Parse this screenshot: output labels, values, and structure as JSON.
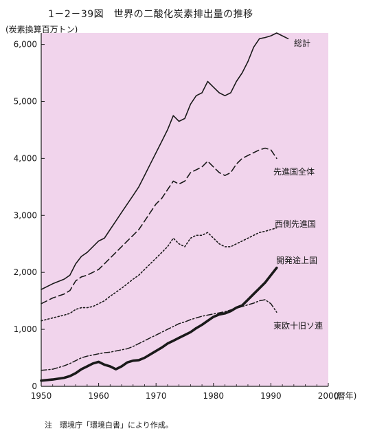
{
  "title": "1－2－39図　世界の二酸化炭素排出量の推移",
  "unit_label": "(炭素換算百万トン)",
  "note": "注　環境庁「環境白書」により作成。",
  "colors": {
    "plot_background": "#f1d4ec",
    "axis": "#1a1a1a",
    "line": "#1a1a1a"
  },
  "chart_data": {
    "type": "line",
    "xlabel": "(暦年)",
    "ylabel": "(炭素換算百万トン)",
    "xlim": [
      1950,
      2000
    ],
    "ylim": [
      0,
      6200
    ],
    "x_ticks": [
      1950,
      1960,
      1970,
      1980,
      1990,
      2000
    ],
    "x_tick_labels": [
      "1950",
      "1960",
      "1970",
      "1980",
      "1990",
      "2000"
    ],
    "y_ticks": [
      0,
      1000,
      2000,
      3000,
      4000,
      5000,
      6000
    ],
    "y_tick_labels": [
      "0",
      "1,000",
      "2,000",
      "3,000",
      "4,000",
      "5,000",
      "6,000"
    ],
    "grid": false,
    "series": [
      {
        "name": "総計",
        "style": "solid",
        "x": [
          1950,
          1952,
          1954,
          1955,
          1956,
          1957,
          1958,
          1959,
          1960,
          1961,
          1962,
          1963,
          1964,
          1965,
          1966,
          1967,
          1968,
          1969,
          1970,
          1971,
          1972,
          1973,
          1974,
          1975,
          1976,
          1977,
          1978,
          1979,
          1980,
          1981,
          1982,
          1983,
          1984,
          1985,
          1986,
          1987,
          1988,
          1989,
          1990,
          1991,
          1992,
          1993
        ],
        "y": [
          1700,
          1800,
          1880,
          1950,
          2150,
          2280,
          2350,
          2450,
          2550,
          2600,
          2750,
          2900,
          3050,
          3200,
          3350,
          3500,
          3700,
          3900,
          4100,
          4300,
          4500,
          4750,
          4650,
          4700,
          4950,
          5100,
          5150,
          5350,
          5250,
          5150,
          5100,
          5150,
          5350,
          5500,
          5700,
          5950,
          6100,
          6120,
          6150,
          6200,
          6150,
          6100
        ]
      },
      {
        "name": "先進国全体",
        "style": "dashed",
        "x": [
          1950,
          1952,
          1954,
          1955,
          1956,
          1957,
          1958,
          1959,
          1960,
          1961,
          1962,
          1963,
          1964,
          1965,
          1966,
          1967,
          1968,
          1969,
          1970,
          1971,
          1972,
          1973,
          1974,
          1975,
          1976,
          1977,
          1978,
          1979,
          1980,
          1981,
          1982,
          1983,
          1984,
          1985,
          1986,
          1987,
          1988,
          1989,
          1990,
          1991
        ],
        "y": [
          1450,
          1550,
          1620,
          1680,
          1850,
          1920,
          1950,
          2000,
          2050,
          2150,
          2250,
          2350,
          2450,
          2550,
          2650,
          2750,
          2900,
          3050,
          3200,
          3300,
          3450,
          3600,
          3550,
          3600,
          3750,
          3800,
          3850,
          3950,
          3850,
          3750,
          3700,
          3750,
          3900,
          4000,
          4050,
          4100,
          4150,
          4180,
          4150,
          4000
        ]
      },
      {
        "name": "西側先進国",
        "style": "dotted",
        "x": [
          1950,
          1952,
          1954,
          1955,
          1956,
          1957,
          1958,
          1959,
          1960,
          1961,
          1962,
          1963,
          1964,
          1965,
          1966,
          1967,
          1968,
          1969,
          1970,
          1971,
          1972,
          1973,
          1974,
          1975,
          1976,
          1977,
          1978,
          1979,
          1980,
          1981,
          1982,
          1983,
          1984,
          1985,
          1986,
          1987,
          1988,
          1989,
          1990,
          1991
        ],
        "y": [
          1150,
          1200,
          1250,
          1280,
          1350,
          1380,
          1380,
          1400,
          1450,
          1500,
          1580,
          1650,
          1720,
          1800,
          1880,
          1950,
          2050,
          2150,
          2250,
          2350,
          2450,
          2600,
          2500,
          2450,
          2600,
          2650,
          2650,
          2700,
          2600,
          2500,
          2450,
          2450,
          2500,
          2550,
          2600,
          2650,
          2700,
          2720,
          2750,
          2780
        ]
      },
      {
        "name": "開発途上国",
        "style": "thick",
        "x": [
          1950,
          1952,
          1954,
          1955,
          1956,
          1957,
          1958,
          1959,
          1960,
          1961,
          1962,
          1963,
          1964,
          1965,
          1966,
          1967,
          1968,
          1969,
          1970,
          1971,
          1972,
          1973,
          1974,
          1975,
          1976,
          1977,
          1978,
          1979,
          1980,
          1981,
          1982,
          1983,
          1984,
          1985,
          1986,
          1987,
          1988,
          1989,
          1990,
          1991
        ],
        "y": [
          100,
          120,
          150,
          180,
          230,
          300,
          350,
          400,
          430,
          380,
          350,
          300,
          350,
          420,
          450,
          460,
          500,
          560,
          620,
          680,
          750,
          800,
          850,
          900,
          950,
          1020,
          1080,
          1150,
          1220,
          1260,
          1280,
          1320,
          1380,
          1420,
          1520,
          1620,
          1720,
          1820,
          1950,
          2080
        ]
      },
      {
        "name": "東欧十旧ソ連",
        "style": "dashdot",
        "x": [
          1950,
          1952,
          1954,
          1955,
          1956,
          1957,
          1958,
          1959,
          1960,
          1961,
          1962,
          1963,
          1964,
          1965,
          1966,
          1967,
          1968,
          1969,
          1970,
          1971,
          1972,
          1973,
          1974,
          1975,
          1976,
          1977,
          1978,
          1979,
          1980,
          1981,
          1982,
          1983,
          1984,
          1985,
          1986,
          1987,
          1988,
          1989,
          1990,
          1991
        ],
        "y": [
          280,
          300,
          360,
          400,
          450,
          500,
          530,
          550,
          570,
          590,
          600,
          620,
          640,
          660,
          700,
          750,
          800,
          850,
          900,
          950,
          1000,
          1050,
          1100,
          1130,
          1170,
          1200,
          1230,
          1250,
          1270,
          1290,
          1310,
          1340,
          1370,
          1400,
          1430,
          1460,
          1500,
          1520,
          1450,
          1300
        ]
      }
    ]
  }
}
